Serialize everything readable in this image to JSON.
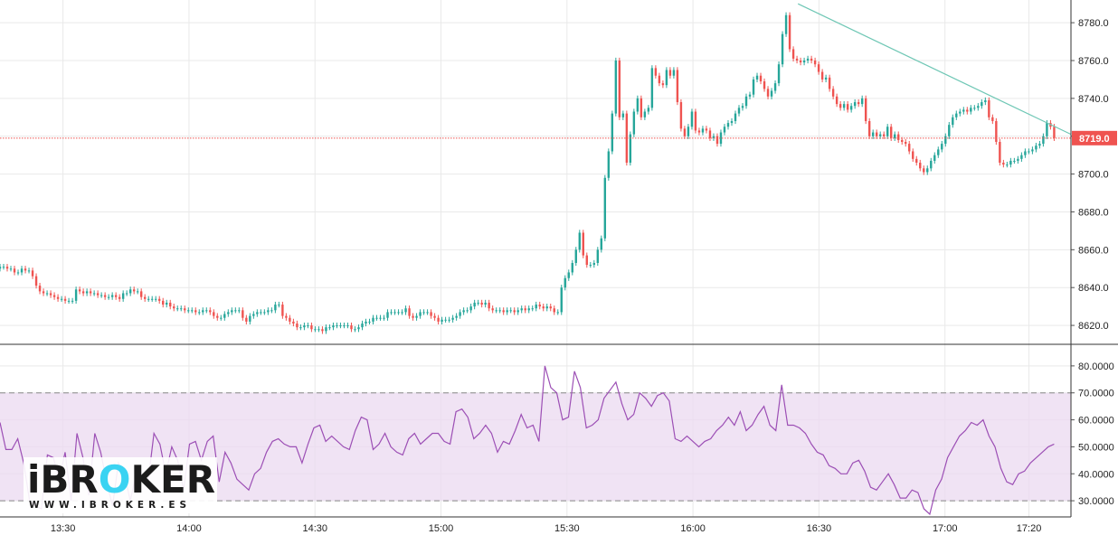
{
  "brand": {
    "logo_text": "iBROKER",
    "logo_url_text": "WWW.IBROKER.ES"
  },
  "colors": {
    "up": "#26a69a",
    "down": "#ef5350",
    "rsi_line": "#9c4fb5",
    "rsi_band": "#ebd9f0",
    "trendline": "#6fc7b5",
    "price_line": "#ef5350",
    "grid": "#e9e9e9",
    "logo_accent": "#3ad3f2"
  },
  "chart_data": [
    {
      "type": "candlestick",
      "title": "",
      "price_axis": {
        "ticks": [
          "8620.0",
          "8640.0",
          "8660.0",
          "8680.0",
          "8700.0",
          "8720.0",
          "8740.0",
          "8760.0",
          "8780.0"
        ],
        "ylim": [
          8610,
          8792
        ]
      },
      "time_axis": {
        "ticks": [
          "13:30",
          "14:00",
          "14:30",
          "15:00",
          "15:30",
          "16:00",
          "16:30",
          "17:00",
          "17:20"
        ],
        "xlim": [
          "13:15",
          "17:30"
        ]
      },
      "last_price": "8719.0",
      "last_price_value": 8719.0,
      "trendline": {
        "start": {
          "time": "16:25",
          "price": 8790
        },
        "end": {
          "time": "17:30",
          "price": 8721
        }
      },
      "closes": [
        8651,
        8651,
        8650,
        8650,
        8648,
        8648,
        8650,
        8649,
        8649,
        8646,
        8641,
        8638,
        8637,
        8637,
        8636,
        8635,
        8634,
        8634,
        8633,
        8633,
        8633,
        8639,
        8638,
        8637,
        8638,
        8637,
        8637,
        8636,
        8636,
        8635,
        8635,
        8636,
        8635,
        8634,
        8637,
        8637,
        8639,
        8638,
        8638,
        8635,
        8634,
        8634,
        8634,
        8634,
        8633,
        8631,
        8632,
        8630,
        8629,
        8629,
        8629,
        8628,
        8628,
        8628,
        8627,
        8627,
        8628,
        8628,
        8627,
        8625,
        8624,
        8624,
        8626,
        8627,
        8628,
        8628,
        8628,
        8624,
        8622,
        8625,
        8626,
        8627,
        8627,
        8627,
        8628,
        8628,
        8631,
        8631,
        8625,
        8624,
        8622,
        8621,
        8619,
        8619,
        8620,
        8620,
        8618,
        8618,
        8618,
        8617,
        8619,
        8619,
        8620,
        8620,
        8620,
        8620,
        8620,
        8618,
        8618,
        8619,
        8621,
        8622,
        8622,
        8624,
        8624,
        8624,
        8624,
        8627,
        8627,
        8627,
        8627,
        8627,
        8629,
        8625,
        8624,
        8625,
        8627,
        8627,
        8627,
        8625,
        8624,
        8622,
        8623,
        8623,
        8623,
        8624,
        8625,
        8627,
        8628,
        8628,
        8630,
        8632,
        8632,
        8631,
        8632,
        8629,
        8628,
        8628,
        8628,
        8627,
        8628,
        8628,
        8627,
        8628,
        8629,
        8628,
        8629,
        8629,
        8631,
        8630,
        8629,
        8630,
        8629,
        8627,
        8627,
        8640,
        8645,
        8648,
        8653,
        8660,
        8669,
        8657,
        8652,
        8652,
        8653,
        8660,
        8666,
        8698,
        8712,
        8732,
        8760,
        8730,
        8732,
        8706,
        8721,
        8733,
        8740,
        8730,
        8733,
        8735,
        8756,
        8752,
        8748,
        8747,
        8755,
        8752,
        8755,
        8738,
        8724,
        8720,
        8725,
        8733,
        8723,
        8722,
        8724,
        8723,
        8719,
        8720,
        8716,
        8722,
        8725,
        8727,
        8728,
        8732,
        8735,
        8736,
        8741,
        8742,
        8750,
        8752,
        8749,
        8745,
        8741,
        8744,
        8748,
        8758,
        8774,
        8784,
        8766,
        8761,
        8760,
        8759,
        8760,
        8761,
        8760,
        8758,
        8754,
        8750,
        8751,
        8745,
        8741,
        8737,
        8735,
        8737,
        8734,
        8736,
        8738,
        8737,
        8740,
        8728,
        8720,
        8722,
        8720,
        8721,
        8720,
        8725,
        8719,
        8721,
        8718,
        8717,
        8716,
        8712,
        8708,
        8706,
        8703,
        8701,
        8703,
        8707,
        8710,
        8713,
        8716,
        8720,
        8726,
        8730,
        8732,
        8733,
        8734,
        8733,
        8735,
        8735,
        8736,
        8738,
        8739,
        8730,
        8728,
        8717,
        8706,
        8705,
        8705,
        8707,
        8707,
        8708,
        8710,
        8712,
        8712,
        8713,
        8715,
        8716,
        8720,
        8727,
        8725,
        8719
      ]
    },
    {
      "type": "line",
      "title": "",
      "y_ticks": [
        "30.0000",
        "40.0000",
        "50.0000",
        "60.0000",
        "70.0000",
        "80.0000"
      ],
      "ylim": [
        24,
        88
      ],
      "band": [
        30,
        70
      ],
      "values": [
        59,
        49,
        49,
        53,
        44,
        30,
        28,
        27,
        47,
        46,
        38,
        48,
        30,
        55,
        46,
        32,
        55,
        48,
        37,
        28,
        44,
        40,
        30,
        40,
        40,
        37,
        55,
        51,
        40,
        50,
        45,
        34,
        51,
        52,
        45,
        52,
        54,
        37,
        48,
        44,
        38,
        36,
        34,
        40,
        42,
        48,
        52,
        53,
        51,
        50,
        50,
        44,
        51,
        57,
        58,
        52,
        54,
        52,
        50,
        49,
        56,
        61,
        60,
        49,
        51,
        55,
        50,
        48,
        47,
        53,
        55,
        51,
        53,
        55,
        55,
        52,
        51,
        63,
        64,
        61,
        53,
        55,
        58,
        55,
        48,
        52,
        51,
        56,
        62,
        57,
        58,
        52,
        80,
        72,
        70,
        60,
        61,
        78,
        72,
        57,
        58,
        60,
        68,
        71,
        74,
        66,
        60,
        62,
        70,
        68,
        65,
        69,
        70,
        67,
        53,
        52,
        54,
        52,
        50,
        52,
        53,
        56,
        58,
        61,
        58,
        63,
        56,
        58,
        62,
        65,
        58,
        56,
        73,
        58,
        58,
        57,
        55,
        51,
        48,
        47,
        43,
        42,
        40,
        40,
        44,
        45,
        41,
        35,
        34,
        37,
        40,
        36,
        31,
        31,
        34,
        33,
        27,
        25,
        34,
        38,
        46,
        50,
        54,
        56,
        59,
        58,
        60,
        54,
        50,
        42,
        37,
        36,
        40,
        41,
        44,
        46,
        48,
        50,
        51
      ]
    }
  ]
}
